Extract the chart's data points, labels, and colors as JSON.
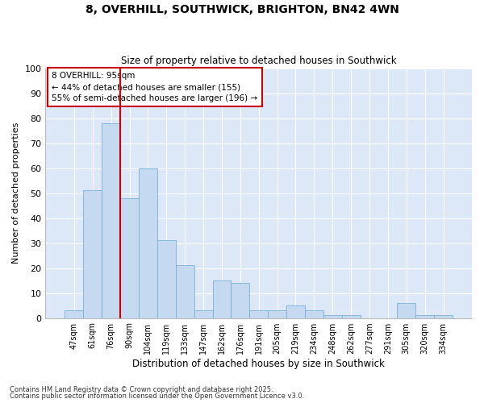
{
  "title_line1": "8, OVERHILL, SOUTHWICK, BRIGHTON, BN42 4WN",
  "title_line2": "Size of property relative to detached houses in Southwick",
  "xlabel": "Distribution of detached houses by size in Southwick",
  "ylabel": "Number of detached properties",
  "categories": [
    "47sqm",
    "61sqm",
    "76sqm",
    "90sqm",
    "104sqm",
    "119sqm",
    "133sqm",
    "147sqm",
    "162sqm",
    "176sqm",
    "191sqm",
    "205sqm",
    "219sqm",
    "234sqm",
    "248sqm",
    "262sqm",
    "277sqm",
    "291sqm",
    "305sqm",
    "320sqm",
    "334sqm"
  ],
  "values": [
    3,
    51,
    78,
    48,
    60,
    31,
    21,
    3,
    15,
    14,
    3,
    3,
    5,
    3,
    1,
    1,
    0,
    0,
    6,
    1,
    1
  ],
  "bar_color": "#c5d9f0",
  "bar_edge_color": "#7bafd4",
  "background_color": "#dce8f8",
  "grid_color": "#ffffff",
  "annotation_box_color": "#cc0000",
  "annotation_text": "8 OVERHILL: 95sqm\n← 44% of detached houses are smaller (155)\n55% of semi-detached houses are larger (196) →",
  "vline_x": 2.5,
  "ylim": [
    0,
    100
  ],
  "yticks": [
    0,
    10,
    20,
    30,
    40,
    50,
    60,
    70,
    80,
    90,
    100
  ],
  "footnote1": "Contains HM Land Registry data © Crown copyright and database right 2025.",
  "footnote2": "Contains public sector information licensed under the Open Government Licence v3.0."
}
